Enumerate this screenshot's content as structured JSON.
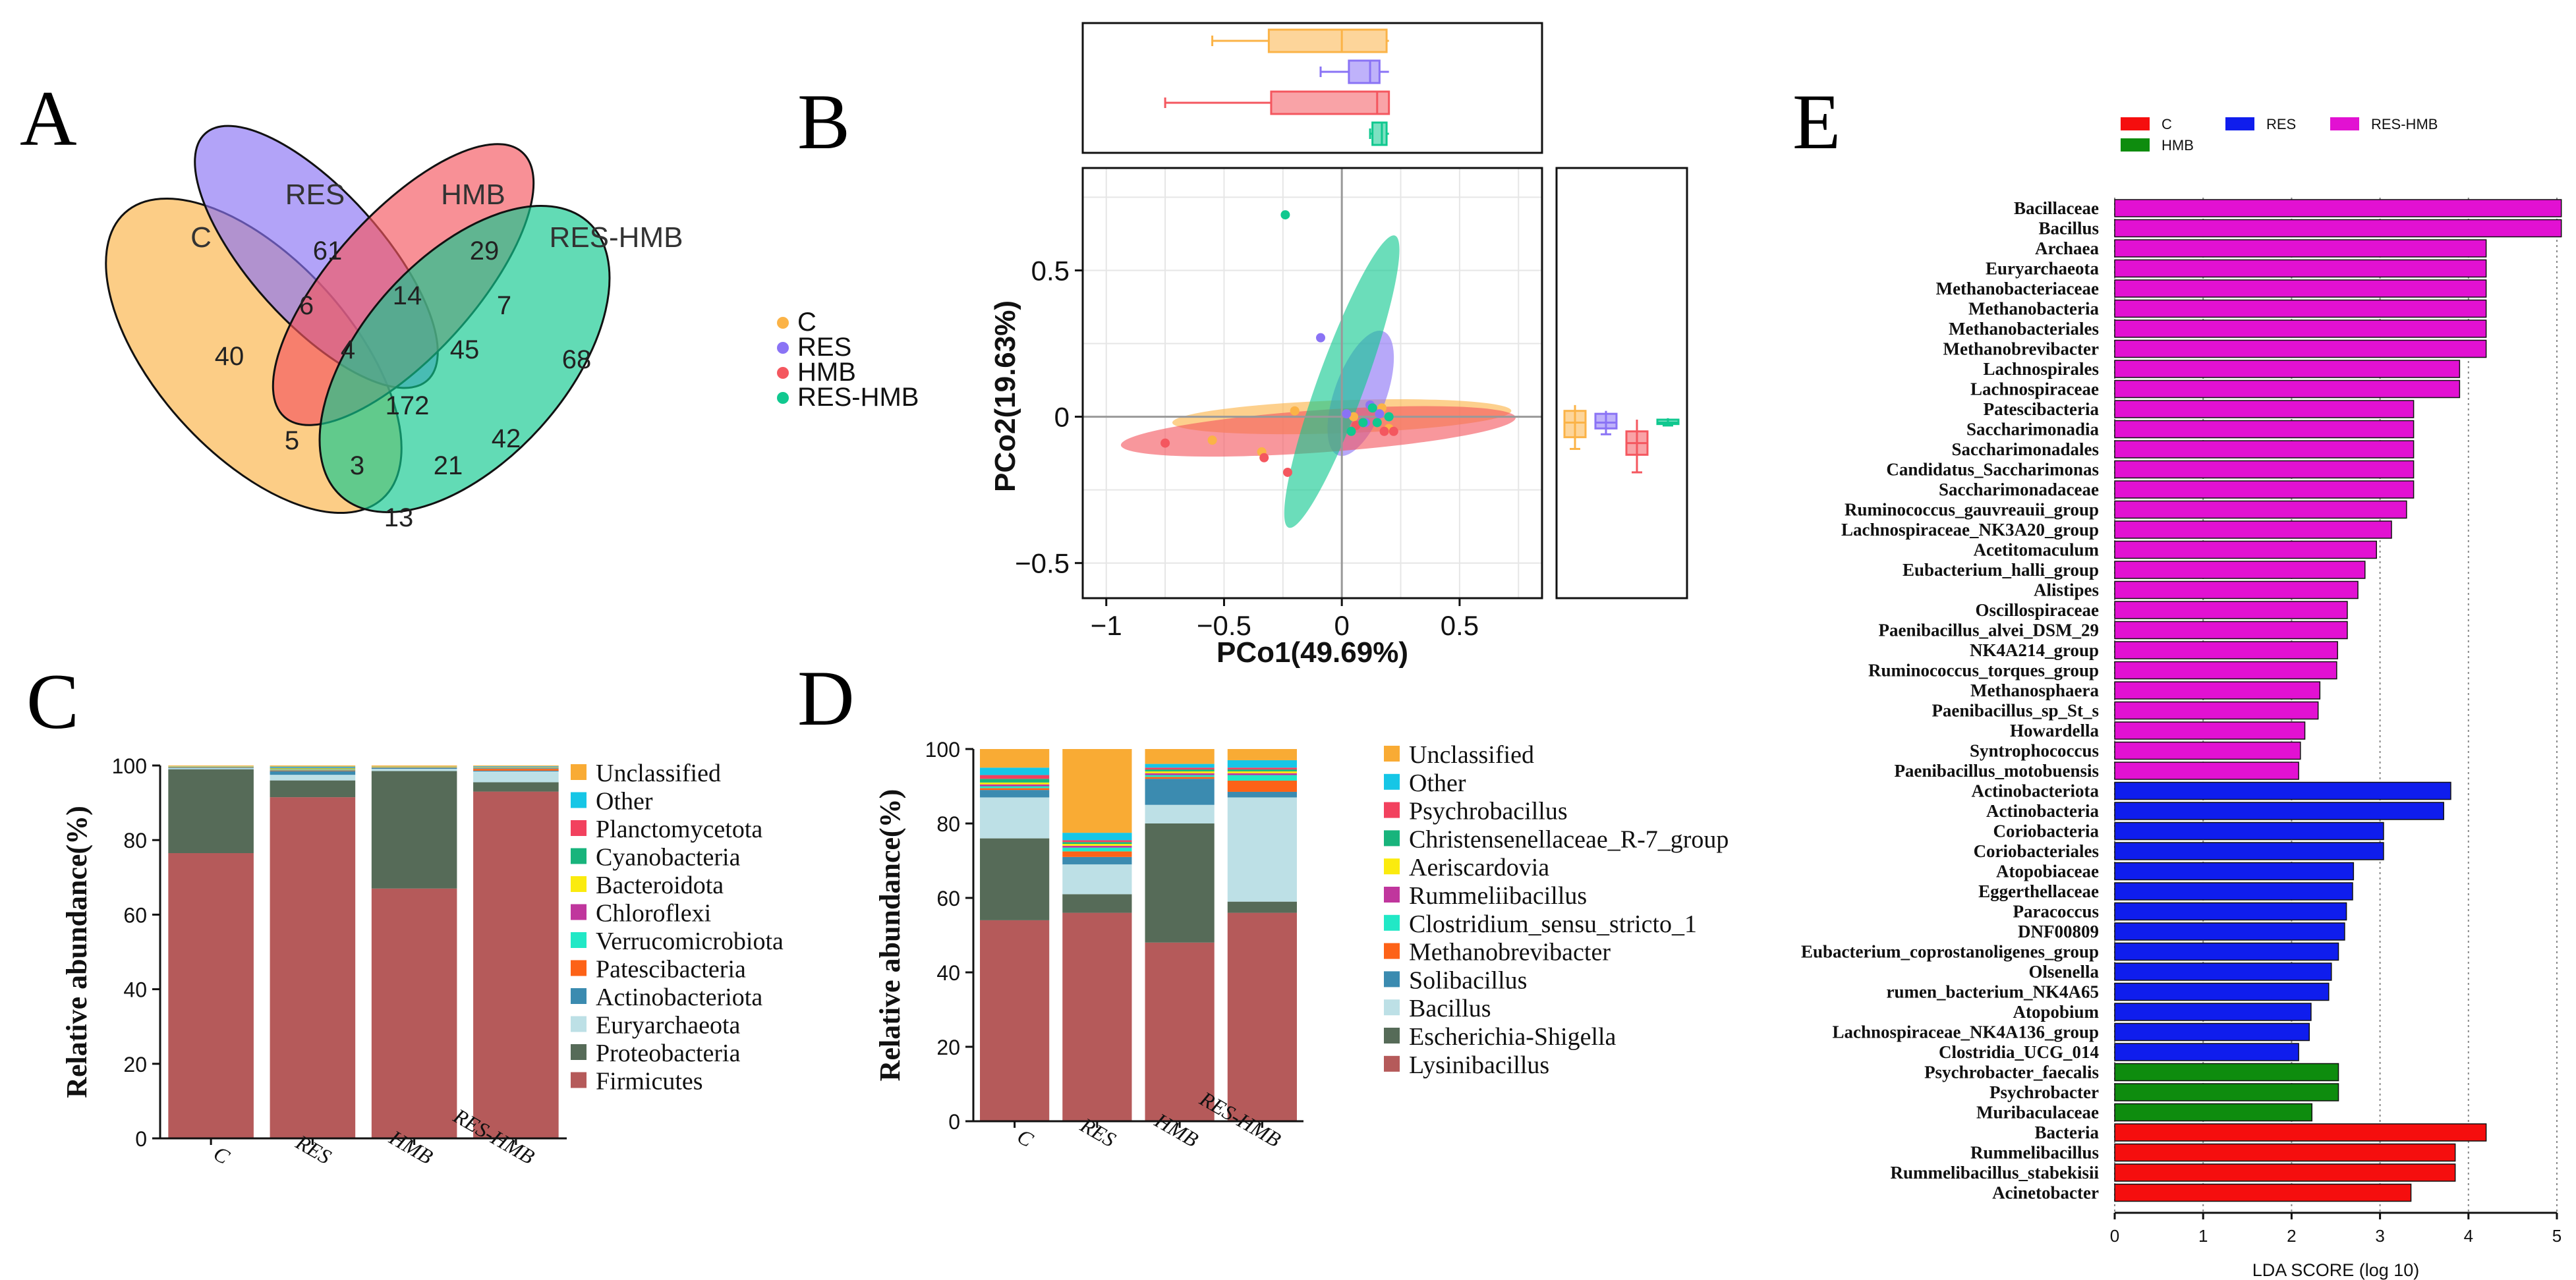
{
  "panel_labels": {
    "a": "A",
    "b": "B",
    "c": "C",
    "d": "D",
    "e": "E"
  },
  "chart_data": [
    {
      "type": "venn",
      "panel": "A",
      "sets": [
        "C",
        "RES",
        "HMB",
        "RES-HMB"
      ],
      "regions": [
        {
          "sets": [
            "C"
          ],
          "value": "40"
        },
        {
          "sets": [
            "RES"
          ],
          "value": "61"
        },
        {
          "sets": [
            "HMB"
          ],
          "value": "29"
        },
        {
          "sets": [
            "RES-HMB"
          ],
          "value": "68"
        },
        {
          "sets": [
            "C",
            "RES"
          ],
          "value": "6"
        },
        {
          "sets": [
            "RES",
            "HMB"
          ],
          "value": "14"
        },
        {
          "sets": [
            "HMB",
            "RES-HMB"
          ],
          "value": "7"
        },
        {
          "sets": [
            "C",
            "RES",
            "HMB"
          ],
          "value": "4"
        },
        {
          "sets": [
            "RES",
            "HMB",
            "RES-HMB"
          ],
          "value": "45"
        },
        {
          "sets": [
            "C",
            "RES",
            "HMB",
            "RES-HMB"
          ],
          "value": "172"
        },
        {
          "sets": [
            "C",
            "HMB"
          ],
          "value": "5"
        },
        {
          "sets": [
            "RES",
            "RES-HMB"
          ],
          "value": "42"
        },
        {
          "sets": [
            "C",
            "HMB",
            "RES-HMB"
          ],
          "value": "3"
        },
        {
          "sets": [
            "C",
            "RES",
            "RES-HMB"
          ],
          "value": "21"
        },
        {
          "sets": [
            "C",
            "RES-HMB"
          ],
          "value": "13"
        }
      ],
      "colors": {
        "C": "#fbb347",
        "RES": "#8a73f5",
        "HMB": "#f4575f",
        "RES-HMB": "#10c88f"
      }
    },
    {
      "type": "scatter",
      "panel": "B",
      "xlabel": "PCo1(49.69%)",
      "ylabel": "PCo2(19.63%)",
      "xlim": [
        -1.1,
        0.85
      ],
      "ylim": [
        -0.62,
        0.85
      ],
      "xticks": [
        {
          "v": -1,
          "label": "−1"
        },
        {
          "v": -0.5,
          "label": "−0.5"
        },
        {
          "v": 0,
          "label": "0"
        },
        {
          "v": 0.5,
          "label": "0.5"
        }
      ],
      "yticks": [
        {
          "v": -0.5,
          "label": "−0.5"
        },
        {
          "v": 0,
          "label": "0"
        },
        {
          "v": 0.5,
          "label": "0.5"
        }
      ],
      "legend": [
        "C",
        "RES",
        "HMB",
        "RES-HMB"
      ],
      "colors": {
        "C": "#fbb347",
        "RES": "#8a73f5",
        "HMB": "#f4575f",
        "RES-HMB": "#10c88f"
      },
      "series": [
        {
          "name": "C",
          "points": [
            [
              -0.55,
              -0.08
            ],
            [
              -0.34,
              -0.12
            ],
            [
              -0.2,
              0.02
            ],
            [
              0.05,
              0.0
            ],
            [
              0.17,
              0.03
            ],
            [
              0.2,
              -0.04
            ]
          ],
          "ellipse": {
            "cx": 0.0,
            "cy": 0.0,
            "rx": 0.72,
            "ry": 0.07,
            "angle": -2
          }
        },
        {
          "name": "RES",
          "points": [
            [
              -0.09,
              0.27
            ],
            [
              0.02,
              0.01
            ],
            [
              0.1,
              -0.02
            ],
            [
              0.12,
              0.04
            ],
            [
              0.16,
              0.01
            ],
            [
              0.2,
              0.0
            ]
          ],
          "ellipse": {
            "cx": 0.08,
            "cy": 0.08,
            "rx": 0.28,
            "ry": 0.11,
            "angle": -70
          }
        },
        {
          "name": "HMB",
          "points": [
            [
              -0.75,
              -0.09
            ],
            [
              -0.33,
              -0.14
            ],
            [
              -0.23,
              -0.19
            ],
            [
              0.06,
              -0.03
            ],
            [
              0.18,
              -0.05
            ],
            [
              0.22,
              -0.05
            ]
          ],
          "ellipse": {
            "cx": -0.1,
            "cy": -0.05,
            "rx": 0.84,
            "ry": 0.09,
            "angle": -4
          }
        },
        {
          "name": "RES-HMB",
          "points": [
            [
              -0.24,
              0.69
            ],
            [
              0.04,
              -0.05
            ],
            [
              0.09,
              -0.02
            ],
            [
              0.13,
              0.03
            ],
            [
              0.15,
              -0.02
            ],
            [
              0.2,
              0.0
            ]
          ],
          "ellipse": {
            "cx": 0.0,
            "cy": 0.12,
            "rx": 0.66,
            "ry": 0.1,
            "angle": -70
          }
        }
      ],
      "boxplot_x": {
        "C": {
          "min": -0.55,
          "q1": -0.31,
          "med": 0.0,
          "q3": 0.19,
          "max": 0.2
        },
        "RES": {
          "min": -0.09,
          "q1": 0.03,
          "med": 0.12,
          "q3": 0.16,
          "max": 0.2
        },
        "HMB": {
          "min": -0.75,
          "q1": -0.3,
          "med": 0.15,
          "q3": 0.2,
          "max": 0.2
        },
        "RES-HMB": {
          "min": 0.12,
          "q1": 0.13,
          "med": 0.17,
          "q3": 0.19,
          "max": 0.2
        }
      },
      "boxplot_y": {
        "C": {
          "min": -0.11,
          "q1": -0.07,
          "med": -0.02,
          "q3": 0.02,
          "max": 0.04
        },
        "RES": {
          "min": -0.06,
          "q1": -0.04,
          "med": -0.02,
          "q3": 0.01,
          "max": 0.02
        },
        "HMB": {
          "min": -0.19,
          "q1": -0.13,
          "med": -0.09,
          "q3": -0.05,
          "max": -0.01
        },
        "RES-HMB": {
          "min": -0.03,
          "q1": -0.025,
          "med": -0.02,
          "q3": -0.01,
          "max": -0.005
        }
      }
    },
    {
      "type": "bar",
      "stacked": true,
      "panel": "C",
      "ylabel": "Relative abundance(%)",
      "ylim": [
        0,
        100
      ],
      "yticks": [
        0,
        20,
        40,
        60,
        80,
        100
      ],
      "categories": [
        "C",
        "RES",
        "HMB",
        "RES-HMB"
      ],
      "legend": [
        "Unclassified",
        "Other",
        "Planctomycetota",
        "Cyanobacteria",
        "Bacteroidota",
        "Chloroflexi",
        "Verrucomicrobiota",
        "Patescibacteria",
        "Actinobacteriota",
        "Euryarchaeota",
        "Proteobacteria",
        "Firmicutes"
      ],
      "series": [
        {
          "name": "Firmicutes",
          "color": "#b55a5a",
          "values": [
            76.5,
            91.5,
            67.0,
            93.0
          ]
        },
        {
          "name": "Proteobacteria",
          "color": "#566b58",
          "values": [
            22.5,
            4.5,
            31.5,
            2.5
          ]
        },
        {
          "name": "Euryarchaeota",
          "color": "#bde0e6",
          "values": [
            0.3,
            1.5,
            0.6,
            2.9
          ]
        },
        {
          "name": "Actinobacteriota",
          "color": "#3b8bb0",
          "values": [
            0.2,
            1.0,
            0.3,
            0.2
          ]
        },
        {
          "name": "Patescibacteria",
          "color": "#fd6217",
          "values": [
            0.1,
            0.2,
            0.1,
            0.5
          ]
        },
        {
          "name": "Verrucomicrobiota",
          "color": "#21e8c6",
          "values": [
            0.0,
            0.2,
            0.0,
            0.1
          ]
        },
        {
          "name": "Chloroflexi",
          "color": "#c0369d",
          "values": [
            0.0,
            0.1,
            0.0,
            0.1
          ]
        },
        {
          "name": "Bacteroidota",
          "color": "#fbeb0e",
          "values": [
            0.1,
            0.2,
            0.1,
            0.1
          ]
        },
        {
          "name": "Cyanobacteria",
          "color": "#18b47c",
          "values": [
            0.0,
            0.1,
            0.0,
            0.1
          ]
        },
        {
          "name": "Planctomycetota",
          "color": "#f2415e",
          "values": [
            0.0,
            0.1,
            0.0,
            0.1
          ]
        },
        {
          "name": "Other",
          "color": "#16c6e6",
          "values": [
            0.1,
            0.3,
            0.1,
            0.2
          ]
        },
        {
          "name": "Unclassified",
          "color": "#f9ab34",
          "values": [
            0.2,
            0.3,
            0.3,
            0.2
          ]
        }
      ]
    },
    {
      "type": "bar",
      "stacked": true,
      "panel": "D",
      "ylabel": "Relative abundance(%)",
      "ylim": [
        0,
        100
      ],
      "yticks": [
        0,
        20,
        40,
        60,
        80,
        100
      ],
      "categories": [
        "C",
        "RES",
        "HMB",
        "RES-HMB"
      ],
      "legend": [
        "Unclassified",
        "Other",
        "Psychrobacillus",
        "Christensenellaceae_R-7_group",
        "Aeriscardovia",
        "Rummeliibacillus",
        "Clostridium_sensu_stricto_1",
        "Methanobrevibacter",
        "Solibacillus",
        "Bacillus",
        "Escherichia-Shigella",
        "Lysinibacillus"
      ],
      "series": [
        {
          "name": "Lysinibacillus",
          "color": "#b55a5a",
          "values": [
            54.0,
            56.0,
            48.0,
            56.0
          ]
        },
        {
          "name": "Escherichia-Shigella",
          "color": "#566b58",
          "values": [
            22.0,
            5.0,
            32.0,
            3.0
          ]
        },
        {
          "name": "Bacillus",
          "color": "#bde0e6",
          "values": [
            11.0,
            8.0,
            5.0,
            28.0
          ]
        },
        {
          "name": "Solibacillus",
          "color": "#3b8bb0",
          "values": [
            2.0,
            2.0,
            7.0,
            1.5
          ]
        },
        {
          "name": "Methanobrevibacter",
          "color": "#fd6217",
          "values": [
            0.5,
            1.5,
            0.5,
            3.0
          ]
        },
        {
          "name": "Clostridium_sensu_stricto_1",
          "color": "#21e8c6",
          "values": [
            0.5,
            1.0,
            0.5,
            1.5
          ]
        },
        {
          "name": "Rummeliibacillus",
          "color": "#c0369d",
          "values": [
            0.5,
            0.5,
            0.5,
            0.5
          ]
        },
        {
          "name": "Aeriscardovia",
          "color": "#fbeb0e",
          "values": [
            0.5,
            0.5,
            0.5,
            0.5
          ]
        },
        {
          "name": "Christensenellaceae_R-7_group",
          "color": "#18b47c",
          "values": [
            1.0,
            0.5,
            0.5,
            0.5
          ]
        },
        {
          "name": "Psychrobacillus",
          "color": "#f2415e",
          "values": [
            1.0,
            0.5,
            0.5,
            0.5
          ]
        },
        {
          "name": "Other",
          "color": "#16c6e6",
          "values": [
            2.0,
            2.0,
            1.0,
            2.0
          ]
        },
        {
          "name": "Unclassified",
          "color": "#f9ab34",
          "values": [
            5.0,
            22.5,
            4.0,
            3.0
          ]
        }
      ]
    },
    {
      "type": "bar",
      "orientation": "horizontal",
      "panel": "E",
      "xlabel": "LDA SCORE (log 10)",
      "xlim": [
        0,
        5
      ],
      "xticks": [
        0,
        1,
        2,
        3,
        4,
        5
      ],
      "legend": [
        {
          "name": "C",
          "color": "#f50e0e"
        },
        {
          "name": "RES",
          "color": "#0f1ded"
        },
        {
          "name": "RES-HMB",
          "color": "#e211d2"
        },
        {
          "name": "HMB",
          "color": "#0e8c0e"
        }
      ],
      "bars": [
        {
          "label": "Bacillaceae",
          "value": 5.05,
          "group": "RES-HMB"
        },
        {
          "label": "Bacillus",
          "value": 5.05,
          "group": "RES-HMB"
        },
        {
          "label": "Archaea",
          "value": 4.2,
          "group": "RES-HMB"
        },
        {
          "label": "Euryarchaeota",
          "value": 4.2,
          "group": "RES-HMB"
        },
        {
          "label": "Methanobacteriaceae",
          "value": 4.2,
          "group": "RES-HMB"
        },
        {
          "label": "Methanobacteria",
          "value": 4.2,
          "group": "RES-HMB"
        },
        {
          "label": "Methanobacteriales",
          "value": 4.2,
          "group": "RES-HMB"
        },
        {
          "label": "Methanobrevibacter",
          "value": 4.2,
          "group": "RES-HMB"
        },
        {
          "label": "Lachnospirales",
          "value": 3.9,
          "group": "RES-HMB"
        },
        {
          "label": "Lachnospiraceae",
          "value": 3.9,
          "group": "RES-HMB"
        },
        {
          "label": "Patescibacteria",
          "value": 3.38,
          "group": "RES-HMB"
        },
        {
          "label": "Saccharimonadia",
          "value": 3.38,
          "group": "RES-HMB"
        },
        {
          "label": "Saccharimonadales",
          "value": 3.38,
          "group": "RES-HMB"
        },
        {
          "label": "Candidatus_Saccharimonas",
          "value": 3.38,
          "group": "RES-HMB"
        },
        {
          "label": "Saccharimonadaceae",
          "value": 3.38,
          "group": "RES-HMB"
        },
        {
          "label": "Ruminococcus_gauvreauii_group",
          "value": 3.3,
          "group": "RES-HMB"
        },
        {
          "label": "Lachnospiraceae_NK3A20_group",
          "value": 3.13,
          "group": "RES-HMB"
        },
        {
          "label": "Acetitomaculum",
          "value": 2.96,
          "group": "RES-HMB"
        },
        {
          "label": "Eubacterium_halli_group",
          "value": 2.83,
          "group": "RES-HMB"
        },
        {
          "label": "Alistipes",
          "value": 2.75,
          "group": "RES-HMB"
        },
        {
          "label": "Oscillospiraceae",
          "value": 2.63,
          "group": "RES-HMB"
        },
        {
          "label": "Paenibacillus_alvei_DSM_29",
          "value": 2.63,
          "group": "RES-HMB"
        },
        {
          "label": "NK4A214_group",
          "value": 2.52,
          "group": "RES-HMB"
        },
        {
          "label": "Ruminococcus_torques_group",
          "value": 2.51,
          "group": "RES-HMB"
        },
        {
          "label": "Methanosphaera",
          "value": 2.32,
          "group": "RES-HMB"
        },
        {
          "label": "Paenibacillus_sp_St_s",
          "value": 2.3,
          "group": "RES-HMB"
        },
        {
          "label": "Howardella",
          "value": 2.15,
          "group": "RES-HMB"
        },
        {
          "label": "Syntrophococcus",
          "value": 2.1,
          "group": "RES-HMB"
        },
        {
          "label": "Paenibacillus_motobuensis",
          "value": 2.08,
          "group": "RES-HMB"
        },
        {
          "label": "Actinobacteriota",
          "value": 3.8,
          "group": "RES"
        },
        {
          "label": "Actinobacteria",
          "value": 3.72,
          "group": "RES"
        },
        {
          "label": "Coriobacteria",
          "value": 3.04,
          "group": "RES"
        },
        {
          "label": "Coriobacteriales",
          "value": 3.04,
          "group": "RES"
        },
        {
          "label": "Atopobiaceae",
          "value": 2.7,
          "group": "RES"
        },
        {
          "label": "Eggerthellaceae",
          "value": 2.69,
          "group": "RES"
        },
        {
          "label": "Paracoccus",
          "value": 2.62,
          "group": "RES"
        },
        {
          "label": "DNF00809",
          "value": 2.6,
          "group": "RES"
        },
        {
          "label": "Eubacterium_coprostanoligenes_group",
          "value": 2.53,
          "group": "RES"
        },
        {
          "label": "Olsenella",
          "value": 2.45,
          "group": "RES"
        },
        {
          "label": "rumen_bacterium_NK4A65",
          "value": 2.42,
          "group": "RES"
        },
        {
          "label": "Atopobium",
          "value": 2.22,
          "group": "RES"
        },
        {
          "label": "Lachnospiraceae_NK4A136_group",
          "value": 2.2,
          "group": "RES"
        },
        {
          "label": "Clostridia_UCG_014",
          "value": 2.08,
          "group": "RES"
        },
        {
          "label": "Psychrobacter_faecalis",
          "value": 2.53,
          "group": "HMB"
        },
        {
          "label": "Psychrobacter",
          "value": 2.53,
          "group": "HMB"
        },
        {
          "label": "Muribaculaceae",
          "value": 2.23,
          "group": "HMB"
        },
        {
          "label": "Bacteria",
          "value": 4.2,
          "group": "C"
        },
        {
          "label": "Rummelibacillus",
          "value": 3.85,
          "group": "C"
        },
        {
          "label": "Rummelibacillus_stabekisii",
          "value": 3.85,
          "group": "C"
        },
        {
          "label": "Acinetobacter",
          "value": 3.35,
          "group": "C"
        }
      ]
    }
  ]
}
